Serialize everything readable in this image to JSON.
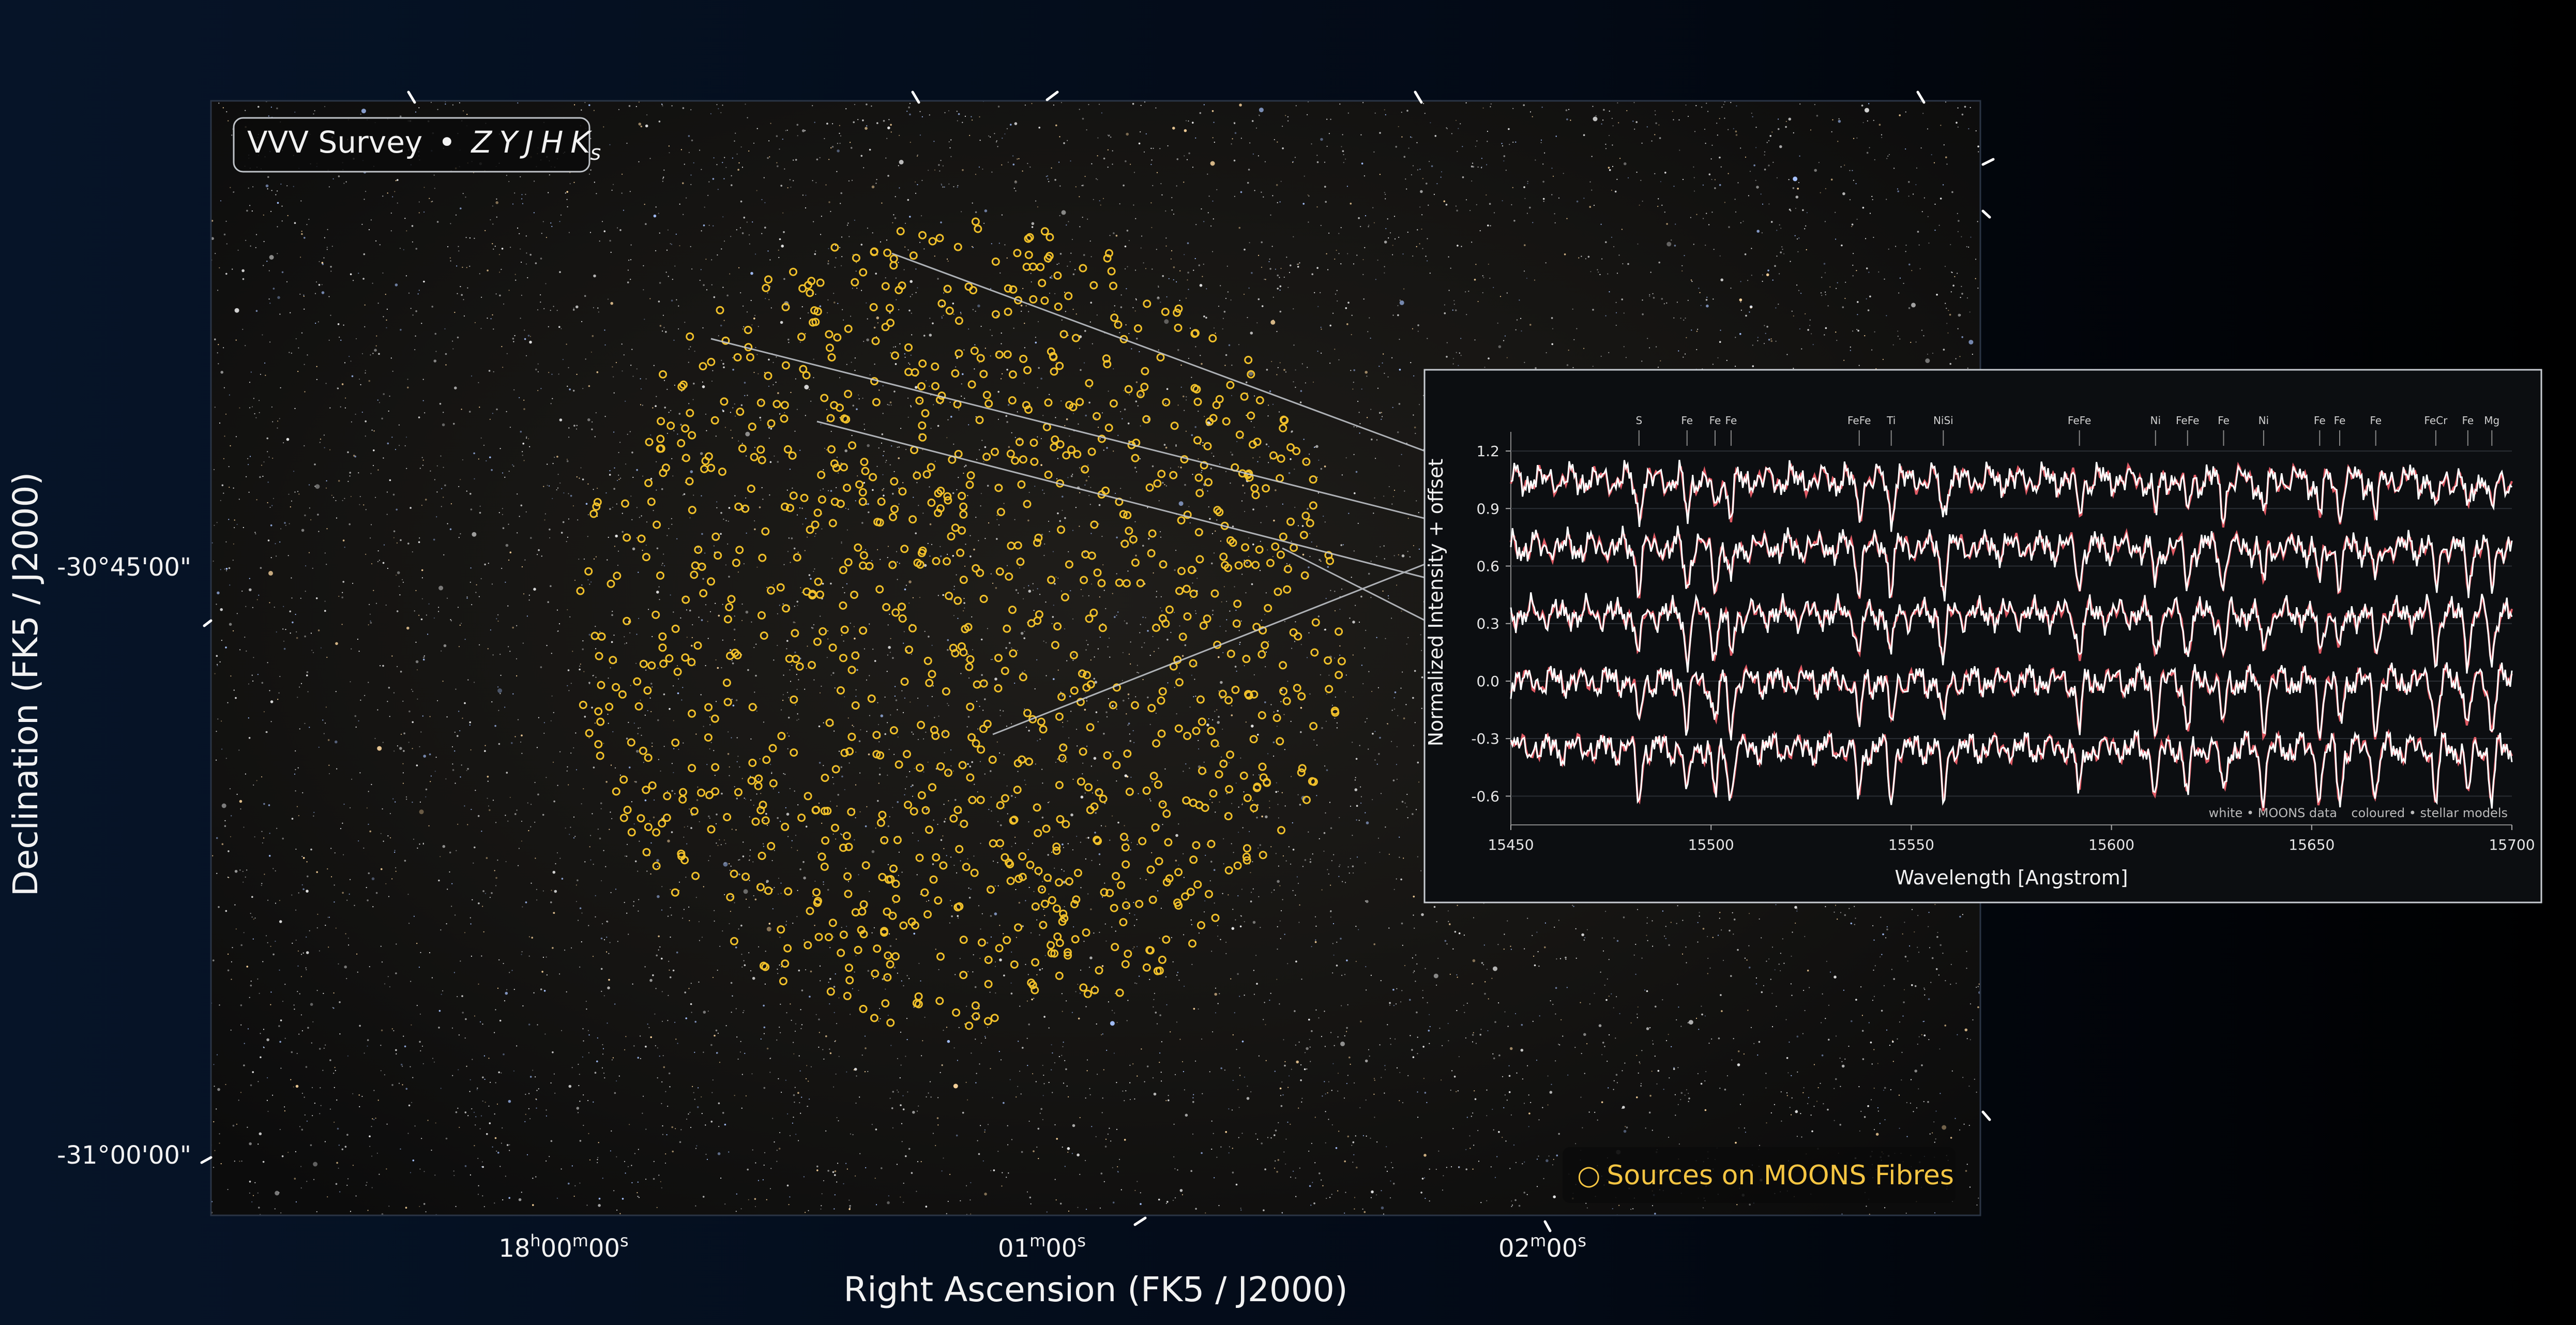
{
  "survey_label": {
    "name": "VVV Survey",
    "separator": "•",
    "bands": [
      "Z",
      "Y",
      "J",
      "H",
      "K"
    ],
    "last_band_subscript": "s"
  },
  "axes": {
    "dec_label": "Declination (FK5 / J2000)",
    "ra_label": "Right Ascension (FK5 / J2000)",
    "dec_ticks": [
      {
        "label": "-30°45'00\""
      },
      {
        "label": "-31°00'00\""
      }
    ],
    "ra_ticks": [
      {
        "hm": "18",
        "h": "h",
        "m_val": "00",
        "m": "m",
        "s_val": "00",
        "s": "s"
      },
      {
        "hm": "",
        "h": "",
        "m_val": "01",
        "m": "m",
        "s_val": "00",
        "s": "s"
      },
      {
        "hm": "",
        "h": "",
        "m_val": "02",
        "m": "m",
        "s_val": "00",
        "s": "s"
      }
    ]
  },
  "legend": {
    "symbol": "○",
    "text": "Sources on MOONS Fibres",
    "color": "#f5c542"
  },
  "fibre_color": "#f0c02a",
  "chart_data": {
    "type": "line",
    "xlabel": "Wavelength [Angstrom]",
    "ylabel": "Normalized Intensity + offset",
    "xlim": [
      15450,
      15700
    ],
    "ylim": [
      -0.75,
      1.3
    ],
    "x_ticks": [
      15450,
      15500,
      15550,
      15600,
      15650,
      15700
    ],
    "y_ticks": [
      "-0.6",
      "-0.3",
      "0.0",
      "0.3",
      "0.6",
      "0.9",
      "1.2"
    ],
    "y_tick_values": [
      -0.6,
      -0.3,
      0.0,
      0.3,
      0.6,
      0.9,
      1.2
    ],
    "line_ids": [
      {
        "label": "S",
        "x": 15482
      },
      {
        "label": "Fe",
        "x": 15494
      },
      {
        "label": "Fe",
        "x": 15501
      },
      {
        "label": "Fe",
        "x": 15505
      },
      {
        "label": "FeFe",
        "x": 15537
      },
      {
        "label": "Ti",
        "x": 15545
      },
      {
        "label": "NiSi",
        "x": 15558
      },
      {
        "label": "FeFe",
        "x": 15592
      },
      {
        "label": "Ni",
        "x": 15611
      },
      {
        "label": "FeFe",
        "x": 15619
      },
      {
        "label": "Fe",
        "x": 15628
      },
      {
        "label": "Ni",
        "x": 15638
      },
      {
        "label": "Fe",
        "x": 15652
      },
      {
        "label": "Fe",
        "x": 15657
      },
      {
        "label": "Fe",
        "x": 15666
      },
      {
        "label": "FeCr",
        "x": 15681
      },
      {
        "label": "Fe",
        "x": 15689
      },
      {
        "label": "Mg",
        "x": 15695
      }
    ],
    "offsets": [
      1.05,
      0.7,
      0.35,
      0.0,
      -0.35
    ],
    "series": [
      {
        "name": "white • MOONS data",
        "color": "#ffffff"
      },
      {
        "name": "coloured • stellar models",
        "color": "#e05a64"
      }
    ],
    "legend_text": {
      "data": "white  •  MOONS data",
      "models": "coloured  •  stellar models"
    }
  }
}
